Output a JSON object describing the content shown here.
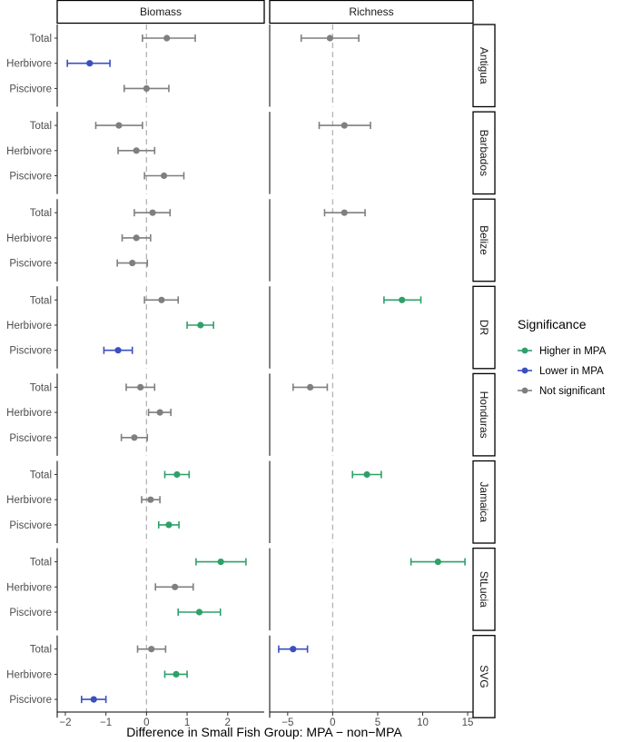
{
  "chart_data": {
    "type": "forest",
    "xlabel": "Difference in Small Fish Group: MPA − non−MPA",
    "facet_cols": [
      "Biomass",
      "Richness"
    ],
    "facet_rows": [
      "Antigua",
      "Barbados",
      "Belize",
      "DR",
      "Honduras",
      "Jamaica",
      "StLucia",
      "SVG"
    ],
    "categories": [
      "Total",
      "Herbivore",
      "Piscivore"
    ],
    "xlim": {
      "Biomass": [
        -2.2,
        2.9
      ],
      "Richness": [
        -7.0,
        15.6
      ]
    },
    "xticks": {
      "Biomass": [
        -2,
        -1,
        0,
        1,
        2
      ],
      "Richness": [
        -5,
        0,
        5,
        10,
        15
      ]
    },
    "xtick_labels": {
      "Biomass": [
        "−2",
        "−1",
        "0",
        "1",
        "2"
      ],
      "Richness": [
        "−5",
        "0",
        "5",
        "10",
        "15"
      ]
    },
    "reference_line": 0,
    "legend": {
      "title": "Significance",
      "entries": [
        "Higher in MPA",
        "Lower in MPA",
        "Not significant"
      ],
      "placement": "right"
    },
    "colors": {
      "Higher in MPA": "#2ea06a",
      "Lower in MPA": "#3a4fc0",
      "Not significant": "#7f7f7f"
    },
    "points": [
      {
        "row": "Antigua",
        "col": "Biomass",
        "group": "Total",
        "est": 0.5,
        "lo": -0.1,
        "hi": 1.2,
        "sig": "Not significant"
      },
      {
        "row": "Antigua",
        "col": "Biomass",
        "group": "Herbivore",
        "est": -1.4,
        "lo": -1.95,
        "hi": -0.9,
        "sig": "Lower in MPA"
      },
      {
        "row": "Antigua",
        "col": "Biomass",
        "group": "Piscivore",
        "est": 0.0,
        "lo": -0.55,
        "hi": 0.55,
        "sig": "Not significant"
      },
      {
        "row": "Antigua",
        "col": "Richness",
        "group": "Total",
        "est": -0.3,
        "lo": -3.5,
        "hi": 2.9,
        "sig": "Not significant"
      },
      {
        "row": "Barbados",
        "col": "Biomass",
        "group": "Total",
        "est": -0.68,
        "lo": -1.25,
        "hi": -0.1,
        "sig": "Not significant"
      },
      {
        "row": "Barbados",
        "col": "Biomass",
        "group": "Herbivore",
        "est": -0.25,
        "lo": -0.7,
        "hi": 0.2,
        "sig": "Not significant"
      },
      {
        "row": "Barbados",
        "col": "Biomass",
        "group": "Piscivore",
        "est": 0.43,
        "lo": -0.05,
        "hi": 0.92,
        "sig": "Not significant"
      },
      {
        "row": "Barbados",
        "col": "Richness",
        "group": "Total",
        "est": 1.3,
        "lo": -1.5,
        "hi": 4.2,
        "sig": "Not significant"
      },
      {
        "row": "Belize",
        "col": "Biomass",
        "group": "Total",
        "est": 0.15,
        "lo": -0.3,
        "hi": 0.58,
        "sig": "Not significant"
      },
      {
        "row": "Belize",
        "col": "Biomass",
        "group": "Herbivore",
        "est": -0.25,
        "lo": -0.6,
        "hi": 0.1,
        "sig": "Not significant"
      },
      {
        "row": "Belize",
        "col": "Biomass",
        "group": "Piscivore",
        "est": -0.35,
        "lo": -0.72,
        "hi": 0.02,
        "sig": "Not significant"
      },
      {
        "row": "Belize",
        "col": "Richness",
        "group": "Total",
        "est": 1.3,
        "lo": -0.9,
        "hi": 3.6,
        "sig": "Not significant"
      },
      {
        "row": "DR",
        "col": "Biomass",
        "group": "Total",
        "est": 0.37,
        "lo": -0.05,
        "hi": 0.78,
        "sig": "Not significant"
      },
      {
        "row": "DR",
        "col": "Biomass",
        "group": "Herbivore",
        "est": 1.33,
        "lo": 1.0,
        "hi": 1.65,
        "sig": "Higher in MPA"
      },
      {
        "row": "DR",
        "col": "Biomass",
        "group": "Piscivore",
        "est": -0.7,
        "lo": -1.05,
        "hi": -0.35,
        "sig": "Lower in MPA"
      },
      {
        "row": "DR",
        "col": "Richness",
        "group": "Total",
        "est": 7.7,
        "lo": 5.7,
        "hi": 9.8,
        "sig": "Higher in MPA"
      },
      {
        "row": "Honduras",
        "col": "Biomass",
        "group": "Total",
        "est": -0.15,
        "lo": -0.5,
        "hi": 0.2,
        "sig": "Not significant"
      },
      {
        "row": "Honduras",
        "col": "Biomass",
        "group": "Herbivore",
        "est": 0.33,
        "lo": 0.05,
        "hi": 0.6,
        "sig": "Not significant"
      },
      {
        "row": "Honduras",
        "col": "Biomass",
        "group": "Piscivore",
        "est": -0.3,
        "lo": -0.62,
        "hi": 0.02,
        "sig": "Not significant"
      },
      {
        "row": "Honduras",
        "col": "Richness",
        "group": "Total",
        "est": -2.5,
        "lo": -4.4,
        "hi": -0.6,
        "sig": "Not significant"
      },
      {
        "row": "Jamaica",
        "col": "Biomass",
        "group": "Total",
        "est": 0.75,
        "lo": 0.45,
        "hi": 1.05,
        "sig": "Higher in MPA"
      },
      {
        "row": "Jamaica",
        "col": "Biomass",
        "group": "Herbivore",
        "est": 0.1,
        "lo": -0.12,
        "hi": 0.33,
        "sig": "Not significant"
      },
      {
        "row": "Jamaica",
        "col": "Biomass",
        "group": "Piscivore",
        "est": 0.55,
        "lo": 0.3,
        "hi": 0.8,
        "sig": "Higher in MPA"
      },
      {
        "row": "Jamaica",
        "col": "Richness",
        "group": "Total",
        "est": 3.8,
        "lo": 2.2,
        "hi": 5.4,
        "sig": "Higher in MPA"
      },
      {
        "row": "StLucia",
        "col": "Biomass",
        "group": "Total",
        "est": 1.83,
        "lo": 1.22,
        "hi": 2.45,
        "sig": "Higher in MPA"
      },
      {
        "row": "StLucia",
        "col": "Biomass",
        "group": "Herbivore",
        "est": 0.7,
        "lo": 0.22,
        "hi": 1.15,
        "sig": "Not significant"
      },
      {
        "row": "StLucia",
        "col": "Biomass",
        "group": "Piscivore",
        "est": 1.3,
        "lo": 0.78,
        "hi": 1.82,
        "sig": "Higher in MPA"
      },
      {
        "row": "StLucia",
        "col": "Richness",
        "group": "Total",
        "est": 11.7,
        "lo": 8.7,
        "hi": 14.7,
        "sig": "Higher in MPA"
      },
      {
        "row": "SVG",
        "col": "Biomass",
        "group": "Total",
        "est": 0.12,
        "lo": -0.22,
        "hi": 0.47,
        "sig": "Not significant"
      },
      {
        "row": "SVG",
        "col": "Biomass",
        "group": "Herbivore",
        "est": 0.73,
        "lo": 0.45,
        "hi": 1.0,
        "sig": "Higher in MPA"
      },
      {
        "row": "SVG",
        "col": "Biomass",
        "group": "Piscivore",
        "est": -1.3,
        "lo": -1.6,
        "hi": -1.0,
        "sig": "Lower in MPA"
      },
      {
        "row": "SVG",
        "col": "Richness",
        "group": "Total",
        "est": -4.4,
        "lo": -6.0,
        "hi": -2.8,
        "sig": "Lower in MPA"
      }
    ]
  }
}
